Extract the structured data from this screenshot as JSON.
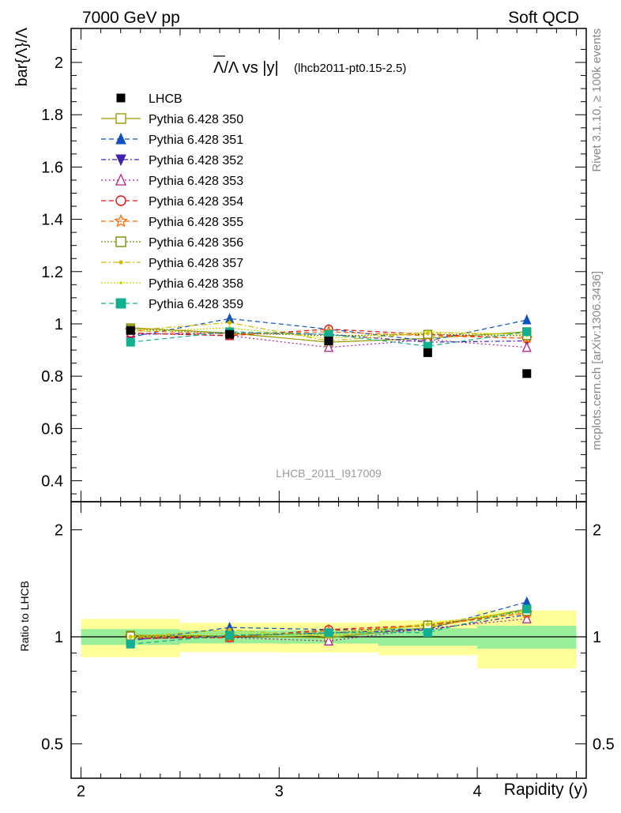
{
  "header": {
    "left": "7000 GeV pp",
    "right": "Soft QCD"
  },
  "side_labels": {
    "rivet": "Rivet 3.1.10, ≥ 100k events",
    "mcplots": "mcplots.cern.ch [arXiv:1306.3436]"
  },
  "chart_data": {
    "type": "line",
    "title_main": "Λ/Λ vs |y|",
    "title_sub": "(lhcb2011-pt0.15-2.5)",
    "watermark": "LHCB_2011_I917009",
    "ylabel": "bar{Λ}/Λ",
    "ratio_ylabel": "Ratio to LHCB",
    "xlabel": "Rapidity (y)",
    "xlim": [
      1.95,
      4.55
    ],
    "ylim": [
      0.32,
      2.13
    ],
    "ratio_ylim": [
      0.4,
      2.4
    ],
    "ratio_log": true,
    "x_ticks": [
      "2",
      "3",
      "4"
    ],
    "y_ticks": [
      "0.4",
      "0.6",
      "0.8",
      "1",
      "1.2",
      "1.4",
      "1.6",
      "1.8",
      "2"
    ],
    "ratio_ticks": [
      "0.5",
      "1",
      "2"
    ],
    "x": [
      2.25,
      2.75,
      3.25,
      3.75,
      4.25
    ],
    "bin_edges": [
      2.0,
      2.5,
      3.0,
      3.5,
      4.0,
      4.5
    ],
    "data": {
      "name": "LHCB",
      "values": [
        0.975,
        0.96,
        0.935,
        0.89,
        0.81
      ],
      "band_inner": [
        0.05,
        0.04,
        0.04,
        0.05,
        0.06
      ],
      "band_outer": [
        0.12,
        0.09,
        0.09,
        0.1,
        0.15
      ]
    },
    "series": [
      {
        "name": "Pythia 6.428 350",
        "color": "#999900",
        "dash": "",
        "marker": "open-square",
        "values": [
          0.985,
          0.965,
          0.93,
          0.945,
          0.97
        ]
      },
      {
        "name": "Pythia 6.428 351",
        "color": "#1050c0",
        "dash": "6,4",
        "marker": "filled-triangle-up",
        "values": [
          0.95,
          1.02,
          0.98,
          0.935,
          1.015
        ]
      },
      {
        "name": "Pythia 6.428 352",
        "color": "#4020b0",
        "dash": "6,3,2,3",
        "marker": "filled-triangle-down",
        "values": [
          0.96,
          0.965,
          0.96,
          0.93,
          0.935
        ]
      },
      {
        "name": "Pythia 6.428 353",
        "color": "#b0208a",
        "dash": "2,3",
        "marker": "open-triangle-up",
        "values": [
          0.965,
          0.955,
          0.91,
          0.94,
          0.91
        ]
      },
      {
        "name": "Pythia 6.428 354",
        "color": "#e01010",
        "dash": "6,4",
        "marker": "open-circle",
        "values": [
          0.965,
          0.955,
          0.98,
          0.96,
          0.945
        ]
      },
      {
        "name": "Pythia 6.428 355",
        "color": "#ff6a00",
        "dash": "6,4",
        "marker": "open-star",
        "values": [
          0.975,
          0.96,
          0.97,
          0.955,
          0.945
        ]
      },
      {
        "name": "Pythia 6.428 356",
        "color": "#7a8a00",
        "dash": "2,2",
        "marker": "open-square",
        "values": [
          0.98,
          0.965,
          0.955,
          0.96,
          0.955
        ]
      },
      {
        "name": "Pythia 6.428 357",
        "color": "#d4b800",
        "dash": "7,3,2,3",
        "marker": "dot",
        "values": [
          0.975,
          1.005,
          0.935,
          0.965,
          0.96
        ]
      },
      {
        "name": "Pythia 6.428 358",
        "color": "#c8d400",
        "dash": "2,2",
        "marker": "small-dot",
        "values": [
          0.97,
          0.985,
          0.945,
          0.97,
          0.96
        ]
      },
      {
        "name": "Pythia 6.428 359",
        "color": "#10b090",
        "dash": "6,4",
        "marker": "filled-square",
        "values": [
          0.93,
          0.97,
          0.96,
          0.915,
          0.97
        ]
      }
    ]
  }
}
